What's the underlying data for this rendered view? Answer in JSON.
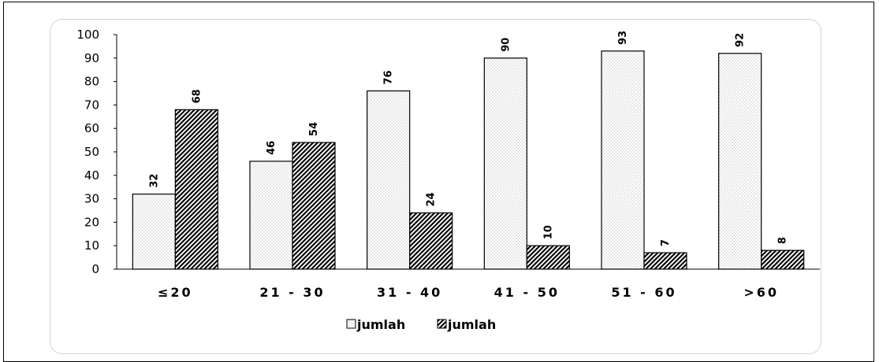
{
  "chart_data": {
    "type": "bar",
    "title": "",
    "xlabel": "",
    "ylabel": "",
    "categories": [
      "≤20",
      "21-30",
      "31-40",
      "41-50",
      "51-60",
      ">60"
    ],
    "category_labels": [
      "≤20",
      "21 - 30",
      "31 - 40",
      "41 - 50",
      "51 - 60",
      ">60"
    ],
    "series": [
      {
        "name": "jumlah",
        "values": [
          32,
          46,
          76,
          90,
          93,
          92
        ],
        "pattern": "dots"
      },
      {
        "name": "jumlah",
        "values": [
          68,
          54,
          24,
          10,
          7,
          8
        ],
        "pattern": "hatch"
      }
    ],
    "ylim": [
      0,
      100
    ],
    "yticks": [
      0,
      10,
      20,
      30,
      40,
      50,
      60,
      70,
      80,
      90,
      100
    ],
    "grid": false,
    "legend_position": "bottom",
    "colors": {
      "axis": "#000000",
      "bar_stroke": "#000000",
      "dot_fill": "#9a9a9a",
      "hatch": "#000000",
      "card_border": "#d4d4d4"
    }
  }
}
